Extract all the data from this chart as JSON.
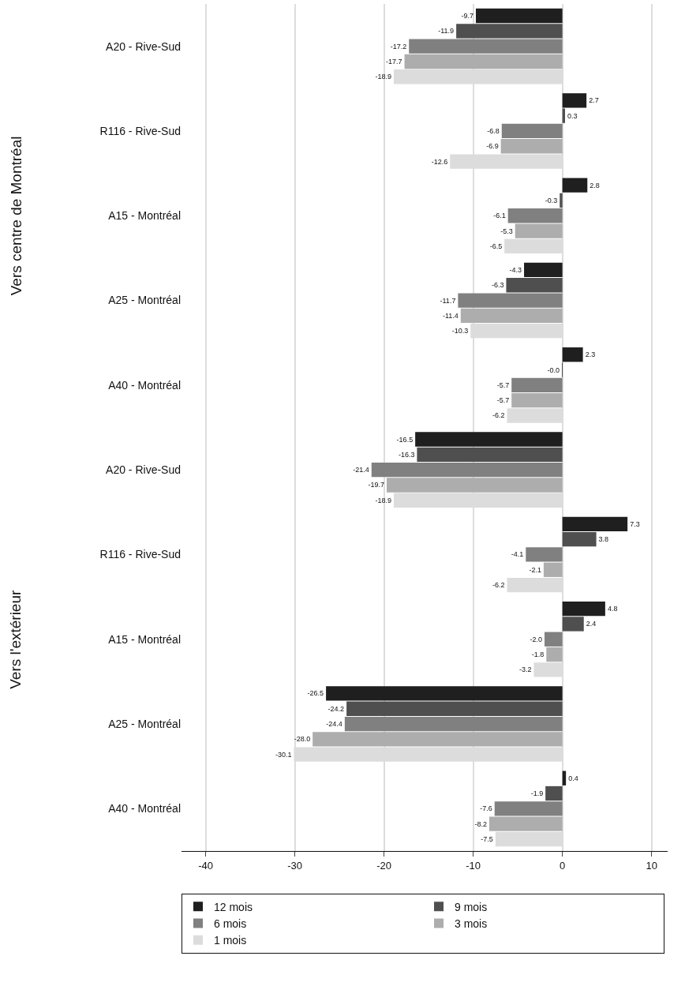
{
  "chart_data": {
    "type": "bar",
    "orientation": "horizontal",
    "categories": [
      "A20 - Rive-Sud",
      "R116 - Rive-Sud",
      "A15 - Montréal",
      "A25 - Montréal",
      "A40 - Montréal",
      "A20 - Rive-Sud",
      "R116 - Rive-Sud",
      "A15 - Montréal",
      "A25 - Montréal",
      "A40 - Montréal"
    ],
    "series": [
      {
        "name": "12 mois",
        "color": "#1f1f1f",
        "values": [
          -9.7,
          2.7,
          2.8,
          -4.3,
          2.3,
          -16.5,
          7.3,
          4.8,
          -26.5,
          0.4
        ],
        "value_labels": [
          "-9.7",
          "2.7",
          "2.8",
          "-4.3",
          "2.3",
          "-16.5",
          "7.3",
          "4.8",
          "-26.5",
          "0.4"
        ]
      },
      {
        "name": "9 mois",
        "color": "#4f4f4f",
        "values": [
          -11.9,
          0.3,
          -0.3,
          -6.3,
          -0.04,
          -16.3,
          3.8,
          2.4,
          -24.2,
          -1.9
        ],
        "value_labels": [
          "-11.9",
          "0.3",
          "-0.3",
          "-6.3",
          "-0.0",
          "-16.3",
          "3.8",
          "2.4",
          "-24.2",
          "-1.9"
        ]
      },
      {
        "name": "6 mois",
        "color": "#808080",
        "values": [
          -17.2,
          -6.8,
          -6.1,
          -11.7,
          -5.7,
          -21.4,
          -4.1,
          -2,
          -24.4,
          -7.6
        ],
        "value_labels": [
          "-17.2",
          "-6.8",
          "-6.1",
          "-11.7",
          "-5.7",
          "-21.4",
          "-4.1",
          "-2.0",
          "-24.4",
          "-7.6"
        ]
      },
      {
        "name": "3 mois",
        "color": "#adadad",
        "values": [
          -17.7,
          -6.9,
          -5.3,
          -11.4,
          -5.7,
          -19.7,
          -2.1,
          -1.8,
          -28,
          -8.2
        ],
        "value_labels": [
          "-17.7",
          "-6.9",
          "-5.3",
          "-11.4",
          "-5.7",
          "-19.7",
          "-2.1",
          "-1.8",
          "-28.0",
          "-8.2"
        ]
      },
      {
        "name": "1 mois",
        "color": "#dcdcdc",
        "values": [
          -18.9,
          -12.6,
          -6.5,
          -10.3,
          -6.2,
          -18.9,
          -6.2,
          -3.2,
          -30.1,
          -7.5
        ],
        "value_labels": [
          "-18.9",
          "-12.6",
          "-6.5",
          "-10.3",
          "-6.2",
          "-18.9",
          "-6.2",
          "-3.2",
          "-30.1",
          "-7.5"
        ]
      }
    ],
    "annotations": [
      "Vers centre de Montréal",
      "Vers l'extérieur"
    ],
    "xlim": [
      -42.7,
      11.8
    ],
    "xticks": [
      -40,
      -30,
      -20,
      -10,
      0,
      10
    ],
    "grid": "x",
    "legend": "bottom"
  }
}
